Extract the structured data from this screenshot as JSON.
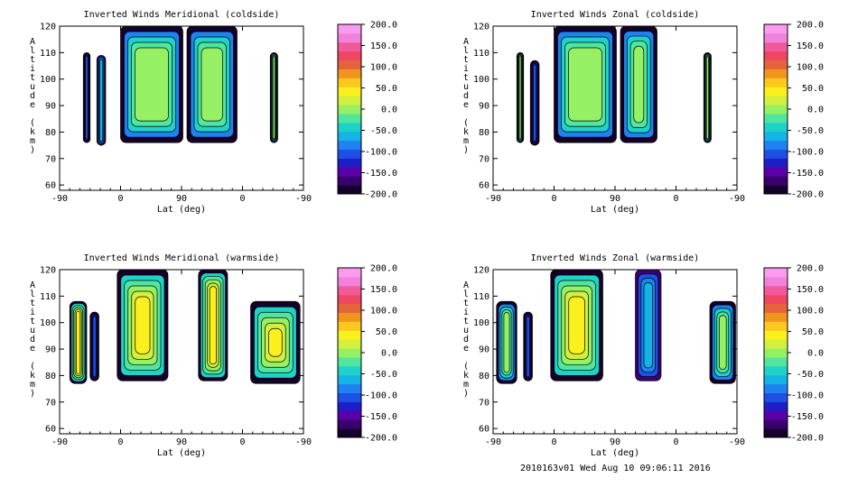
{
  "footer": "2010163v01 Wed Aug 10 09:06:11 2016",
  "colorbar": {
    "labels": [
      "200.0",
      "150.0",
      "100.0",
      "50.0",
      "0.0",
      "-50.0",
      "-100.0",
      "-150.0",
      "-200.0"
    ],
    "range": [
      -200,
      200
    ],
    "colors": [
      "#140028",
      "#3a006e",
      "#5a00a8",
      "#1e1ec8",
      "#1e50e6",
      "#1e82f0",
      "#14b4e6",
      "#1ed2c8",
      "#50e6a0",
      "#96f064",
      "#d2f03c",
      "#faf01e",
      "#fac81e",
      "#f0961e",
      "#e6643c",
      "#f04664",
      "#f05a9b",
      "#f082dc",
      "#fa9bf0"
    ]
  },
  "chart_data": [
    {
      "type": "heatmap",
      "title": "Inverted Winds Meridional (coldside)",
      "xlabel": "Lat (deg)",
      "ylabel": "Altitude (km)",
      "xticks": [
        "-90",
        "0",
        "90",
        "0",
        "-90"
      ],
      "yticks": [
        "60",
        "70",
        "80",
        "90",
        "100",
        "110",
        "120"
      ],
      "xlim": [
        0,
        360
      ],
      "ylim": [
        58,
        120
      ],
      "cells": [
        {
          "x0": 35,
          "x1": 45,
          "y0": 76,
          "y1": 110,
          "level": "strong-neg"
        },
        {
          "x0": 55,
          "x1": 68,
          "y0": 75,
          "y1": 109,
          "level": "neg"
        },
        {
          "x0": 90,
          "x1": 182,
          "y0": 76,
          "y1": 120,
          "level": "neutral"
        },
        {
          "x0": 188,
          "x1": 262,
          "y0": 76,
          "y1": 120,
          "level": "neutral"
        },
        {
          "x0": 311,
          "x1": 322,
          "y0": 76,
          "y1": 110,
          "level": "neutral"
        }
      ]
    },
    {
      "type": "heatmap",
      "title": "Inverted Winds Zonal (coldside)",
      "xlabel": "Lat (deg)",
      "ylabel": "Altitude (km)",
      "xticks": [
        "-90",
        "0",
        "90",
        "0",
        "-90"
      ],
      "yticks": [
        "60",
        "70",
        "80",
        "90",
        "100",
        "110",
        "120"
      ],
      "xlim": [
        0,
        360
      ],
      "ylim": [
        58,
        120
      ],
      "cells": [
        {
          "x0": 35,
          "x1": 45,
          "y0": 76,
          "y1": 110,
          "level": "neutral"
        },
        {
          "x0": 55,
          "x1": 68,
          "y0": 75,
          "y1": 107,
          "level": "strong-neg"
        },
        {
          "x0": 90,
          "x1": 182,
          "y0": 76,
          "y1": 120,
          "level": "neutral"
        },
        {
          "x0": 188,
          "x1": 242,
          "y0": 76,
          "y1": 120,
          "level": "neutral"
        },
        {
          "x0": 311,
          "x1": 322,
          "y0": 76,
          "y1": 110,
          "level": "neutral"
        }
      ]
    },
    {
      "type": "heatmap",
      "title": "Inverted Winds Meridional (warmside)",
      "xlabel": "Lat (deg)",
      "ylabel": "Altitude (km)",
      "xticks": [
        "-90",
        "0",
        "90",
        "0",
        "-90"
      ],
      "yticks": [
        "60",
        "70",
        "80",
        "90",
        "100",
        "110",
        "120"
      ],
      "xlim": [
        0,
        360
      ],
      "ylim": [
        58,
        120
      ],
      "cells": [
        {
          "x0": 15,
          "x1": 40,
          "y0": 77,
          "y1": 108,
          "level": "positive"
        },
        {
          "x0": 45,
          "x1": 58,
          "y0": 78,
          "y1": 104,
          "level": "strong-neg"
        },
        {
          "x0": 85,
          "x1": 160,
          "y0": 78,
          "y1": 120,
          "level": "positive"
        },
        {
          "x0": 205,
          "x1": 248,
          "y0": 78,
          "y1": 120,
          "level": "positive"
        },
        {
          "x0": 282,
          "x1": 355,
          "y0": 77,
          "y1": 108,
          "level": "positive"
        }
      ]
    },
    {
      "type": "heatmap",
      "title": "Inverted Winds Zonal (warmside)",
      "xlabel": "Lat (deg)",
      "ylabel": "Altitude (km)",
      "xticks": [
        "-90",
        "0",
        "90",
        "0",
        "-90"
      ],
      "yticks": [
        "60",
        "70",
        "80",
        "90",
        "100",
        "110",
        "120"
      ],
      "xlim": [
        0,
        360
      ],
      "ylim": [
        58,
        120
      ],
      "cells": [
        {
          "x0": 5,
          "x1": 35,
          "y0": 77,
          "y1": 108,
          "level": "neutral"
        },
        {
          "x0": 45,
          "x1": 58,
          "y0": 78,
          "y1": 104,
          "level": "strong-neg"
        },
        {
          "x0": 85,
          "x1": 162,
          "y0": 78,
          "y1": 120,
          "level": "positive"
        },
        {
          "x0": 210,
          "x1": 248,
          "y0": 78,
          "y1": 120,
          "level": "neg"
        },
        {
          "x0": 320,
          "x1": 358,
          "y0": 77,
          "y1": 108,
          "level": "neutral"
        }
      ]
    }
  ]
}
